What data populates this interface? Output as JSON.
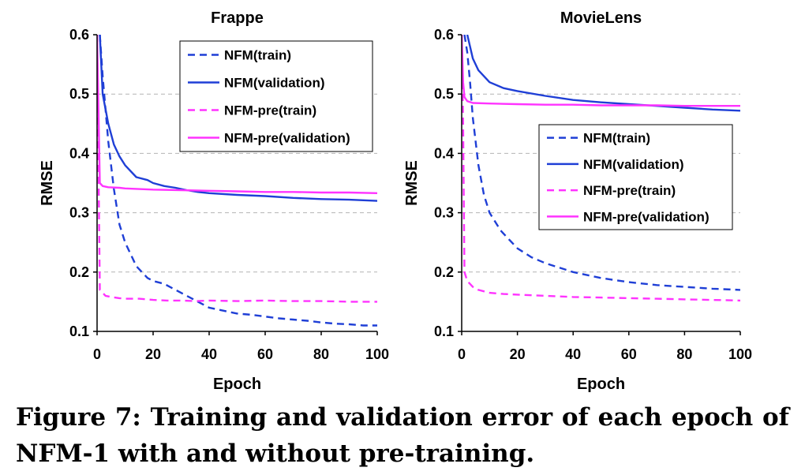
{
  "caption": "Figure 7: Training and validation error of each epoch of NFM-1 with and without pre-training.",
  "colors": {
    "nfm": "#1f3fd6",
    "nfm_pre": "#ff33ff"
  },
  "chart_data": [
    {
      "type": "line",
      "title": "Frappe",
      "xlabel": "Epoch",
      "ylabel": "RMSE",
      "xlim": [
        0,
        100
      ],
      "ylim": [
        0.1,
        0.6
      ],
      "xticks": [
        "0",
        "20",
        "40",
        "60",
        "80",
        "100"
      ],
      "yticks": [
        "0.1",
        "0.2",
        "0.3",
        "0.4",
        "0.5",
        "0.6"
      ],
      "grid": "horizontal dashed",
      "legend_position": "top-right",
      "series": [
        {
          "name": "NFM(train)",
          "style": "dashed",
          "color": "#1f3fd6",
          "x": [
            1,
            2,
            4,
            6,
            8,
            10,
            14,
            18,
            20,
            24,
            28,
            32,
            36,
            40,
            45,
            50,
            55,
            60,
            65,
            70,
            75,
            80,
            85,
            90,
            95,
            100
          ],
          "y": [
            0.6,
            0.53,
            0.42,
            0.34,
            0.28,
            0.25,
            0.21,
            0.19,
            0.185,
            0.18,
            0.17,
            0.16,
            0.15,
            0.14,
            0.135,
            0.13,
            0.128,
            0.125,
            0.122,
            0.12,
            0.118,
            0.115,
            0.113,
            0.112,
            0.11,
            0.11
          ]
        },
        {
          "name": "NFM(validation)",
          "style": "solid",
          "color": "#1f3fd6",
          "x": [
            1,
            2,
            4,
            6,
            8,
            10,
            14,
            18,
            20,
            24,
            28,
            32,
            36,
            40,
            50,
            60,
            70,
            80,
            90,
            100
          ],
          "y": [
            0.6,
            0.5,
            0.45,
            0.415,
            0.395,
            0.38,
            0.36,
            0.355,
            0.35,
            0.345,
            0.342,
            0.338,
            0.335,
            0.333,
            0.33,
            0.328,
            0.325,
            0.323,
            0.322,
            0.32
          ]
        },
        {
          "name": "NFM-pre(train)",
          "style": "dashed",
          "color": "#ff33ff",
          "x": [
            0,
            1,
            2,
            3,
            5,
            8,
            10,
            15,
            20,
            25,
            30,
            35,
            40,
            50,
            60,
            70,
            80,
            90,
            100
          ],
          "y": [
            0.6,
            0.17,
            0.165,
            0.16,
            0.158,
            0.156,
            0.155,
            0.155,
            0.153,
            0.152,
            0.152,
            0.151,
            0.152,
            0.151,
            0.152,
            0.151,
            0.151,
            0.15,
            0.15
          ]
        },
        {
          "name": "NFM-pre(validation)",
          "style": "solid",
          "color": "#ff33ff",
          "x": [
            0,
            1,
            2,
            4,
            8,
            10,
            20,
            30,
            40,
            50,
            60,
            70,
            80,
            90,
            100
          ],
          "y": [
            0.6,
            0.35,
            0.345,
            0.343,
            0.342,
            0.341,
            0.339,
            0.338,
            0.337,
            0.336,
            0.335,
            0.335,
            0.334,
            0.334,
            0.333
          ]
        }
      ]
    },
    {
      "type": "line",
      "title": "MovieLens",
      "xlabel": "Epoch",
      "ylabel": "RMSE",
      "xlim": [
        0,
        100
      ],
      "ylim": [
        0.1,
        0.6
      ],
      "xticks": [
        "0",
        "20",
        "40",
        "60",
        "80",
        "100"
      ],
      "yticks": [
        "0.1",
        "0.2",
        "0.3",
        "0.4",
        "0.5",
        "0.6"
      ],
      "grid": "horizontal dashed",
      "legend_position": "center-right",
      "series": [
        {
          "name": "NFM(train)",
          "style": "dashed",
          "color": "#1f3fd6",
          "x": [
            1,
            2,
            3,
            4,
            6,
            8,
            10,
            14,
            18,
            20,
            25,
            30,
            40,
            50,
            60,
            70,
            80,
            90,
            100
          ],
          "y": [
            0.6,
            0.57,
            0.52,
            0.46,
            0.38,
            0.33,
            0.3,
            0.27,
            0.25,
            0.24,
            0.225,
            0.215,
            0.2,
            0.19,
            0.183,
            0.178,
            0.175,
            0.172,
            0.17
          ]
        },
        {
          "name": "NFM(validation)",
          "style": "solid",
          "color": "#1f3fd6",
          "x": [
            2,
            3,
            4,
            6,
            8,
            10,
            15,
            20,
            30,
            40,
            50,
            60,
            70,
            80,
            90,
            100
          ],
          "y": [
            0.6,
            0.58,
            0.56,
            0.54,
            0.53,
            0.52,
            0.51,
            0.505,
            0.497,
            0.49,
            0.486,
            0.483,
            0.48,
            0.477,
            0.474,
            0.472
          ]
        },
        {
          "name": "NFM-pre(train)",
          "style": "dashed",
          "color": "#ff33ff",
          "x": [
            0,
            0.5,
            1,
            2,
            4,
            6,
            10,
            15,
            20,
            30,
            40,
            50,
            60,
            70,
            80,
            90,
            100
          ],
          "y": [
            0.6,
            0.45,
            0.2,
            0.185,
            0.175,
            0.17,
            0.165,
            0.163,
            0.162,
            0.16,
            0.158,
            0.157,
            0.156,
            0.155,
            0.154,
            0.153,
            0.152
          ]
        },
        {
          "name": "NFM-pre(validation)",
          "style": "solid",
          "color": "#ff33ff",
          "x": [
            0,
            0.5,
            1,
            2,
            4,
            10,
            20,
            30,
            40,
            50,
            60,
            70,
            80,
            90,
            100
          ],
          "y": [
            0.6,
            0.52,
            0.495,
            0.488,
            0.485,
            0.484,
            0.483,
            0.482,
            0.482,
            0.481,
            0.481,
            0.481,
            0.48,
            0.48,
            0.48
          ]
        }
      ]
    }
  ]
}
